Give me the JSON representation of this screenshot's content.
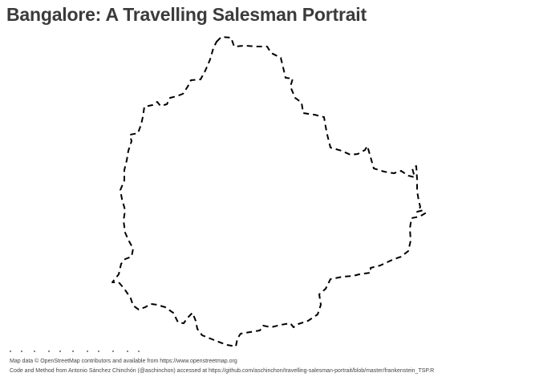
{
  "title": "Bangalore: A Travelling Salesman Portrait",
  "caption": {
    "line1": "Map data © OpenStreetMap contributors and available from https://www.openstreetmap.org",
    "line2": "Code and Method from Antonio Sánchez Chinchón (@aschinchon) accessed at https://github.com/aschinchon/travelling-salesman-portrait/blob/master/frankenstein_TSP.R"
  },
  "style": {
    "path_color": "#000000",
    "title_color": "#3b3b3b",
    "line_type": "dashed"
  }
}
